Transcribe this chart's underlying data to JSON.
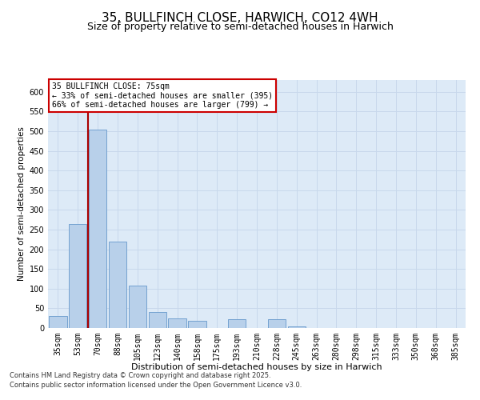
{
  "title1": "35, BULLFINCH CLOSE, HARWICH, CO12 4WH",
  "title2": "Size of property relative to semi-detached houses in Harwich",
  "xlabel": "Distribution of semi-detached houses by size in Harwich",
  "ylabel": "Number of semi-detached properties",
  "categories": [
    "35sqm",
    "53sqm",
    "70sqm",
    "88sqm",
    "105sqm",
    "123sqm",
    "140sqm",
    "158sqm",
    "175sqm",
    "193sqm",
    "210sqm",
    "228sqm",
    "245sqm",
    "263sqm",
    "280sqm",
    "298sqm",
    "315sqm",
    "333sqm",
    "350sqm",
    "368sqm",
    "385sqm"
  ],
  "values": [
    30,
    265,
    505,
    220,
    108,
    40,
    25,
    18,
    0,
    22,
    0,
    22,
    5,
    0,
    0,
    0,
    0,
    0,
    0,
    0,
    0
  ],
  "bar_color": "#b8d0ea",
  "bar_edgecolor": "#6699cc",
  "vline_index": 2,
  "vline_color": "#aa0000",
  "annotation_title": "35 BULLFINCH CLOSE: 75sqm",
  "annotation_line1": "← 33% of semi-detached houses are smaller (395)",
  "annotation_line2": "66% of semi-detached houses are larger (799) →",
  "annotation_box_edgecolor": "#cc0000",
  "ylim_max": 630,
  "yticks": [
    0,
    50,
    100,
    150,
    200,
    250,
    300,
    350,
    400,
    450,
    500,
    550,
    600
  ],
  "grid_color": "#c8d8eb",
  "bg_color": "#ddeaf7",
  "footer1": "Contains HM Land Registry data © Crown copyright and database right 2025.",
  "footer2": "Contains public sector information licensed under the Open Government Licence v3.0.",
  "title1_fontsize": 11,
  "title2_fontsize": 9,
  "tick_fontsize": 7,
  "xlabel_fontsize": 8,
  "ylabel_fontsize": 7.5,
  "annot_fontsize": 7,
  "footer_fontsize": 6
}
